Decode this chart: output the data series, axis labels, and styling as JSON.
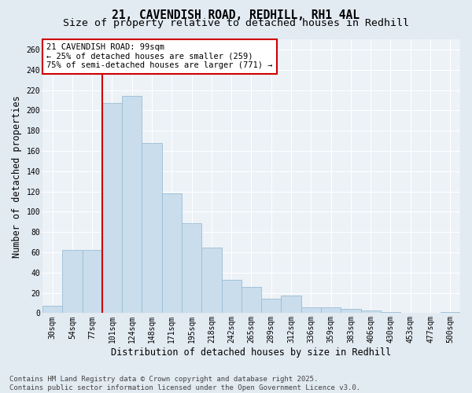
{
  "title_line1": "21, CAVENDISH ROAD, REDHILL, RH1 4AL",
  "title_line2": "Size of property relative to detached houses in Redhill",
  "xlabel": "Distribution of detached houses by size in Redhill",
  "ylabel": "Number of detached properties",
  "categories": [
    "30sqm",
    "54sqm",
    "77sqm",
    "101sqm",
    "124sqm",
    "148sqm",
    "171sqm",
    "195sqm",
    "218sqm",
    "242sqm",
    "265sqm",
    "289sqm",
    "312sqm",
    "336sqm",
    "359sqm",
    "383sqm",
    "406sqm",
    "430sqm",
    "453sqm",
    "477sqm",
    "500sqm"
  ],
  "values": [
    7,
    62,
    62,
    207,
    214,
    168,
    118,
    89,
    65,
    33,
    26,
    14,
    17,
    6,
    6,
    4,
    3,
    1,
    0,
    0,
    1
  ],
  "bar_color": "#c9dded",
  "bar_edge_color": "#9bbdd4",
  "fig_bg_color": "#e2eaf2",
  "ax_bg_color": "#edf2f7",
  "grid_color": "#ffffff",
  "vline_color": "#cc0000",
  "vline_x_index": 2.5,
  "annotation_text": "21 CAVENDISH ROAD: 99sqm\n← 25% of detached houses are smaller (259)\n75% of semi-detached houses are larger (771) →",
  "annotation_box_edgecolor": "#cc0000",
  "ylim": [
    0,
    270
  ],
  "yticks": [
    0,
    20,
    40,
    60,
    80,
    100,
    120,
    140,
    160,
    180,
    200,
    220,
    240,
    260
  ],
  "footer_text": "Contains HM Land Registry data © Crown copyright and database right 2025.\nContains public sector information licensed under the Open Government Licence v3.0.",
  "title_fontsize": 10.5,
  "subtitle_fontsize": 9.5,
  "tick_fontsize": 7,
  "label_fontsize": 8.5,
  "annot_fontsize": 7.5,
  "footer_fontsize": 6.5
}
